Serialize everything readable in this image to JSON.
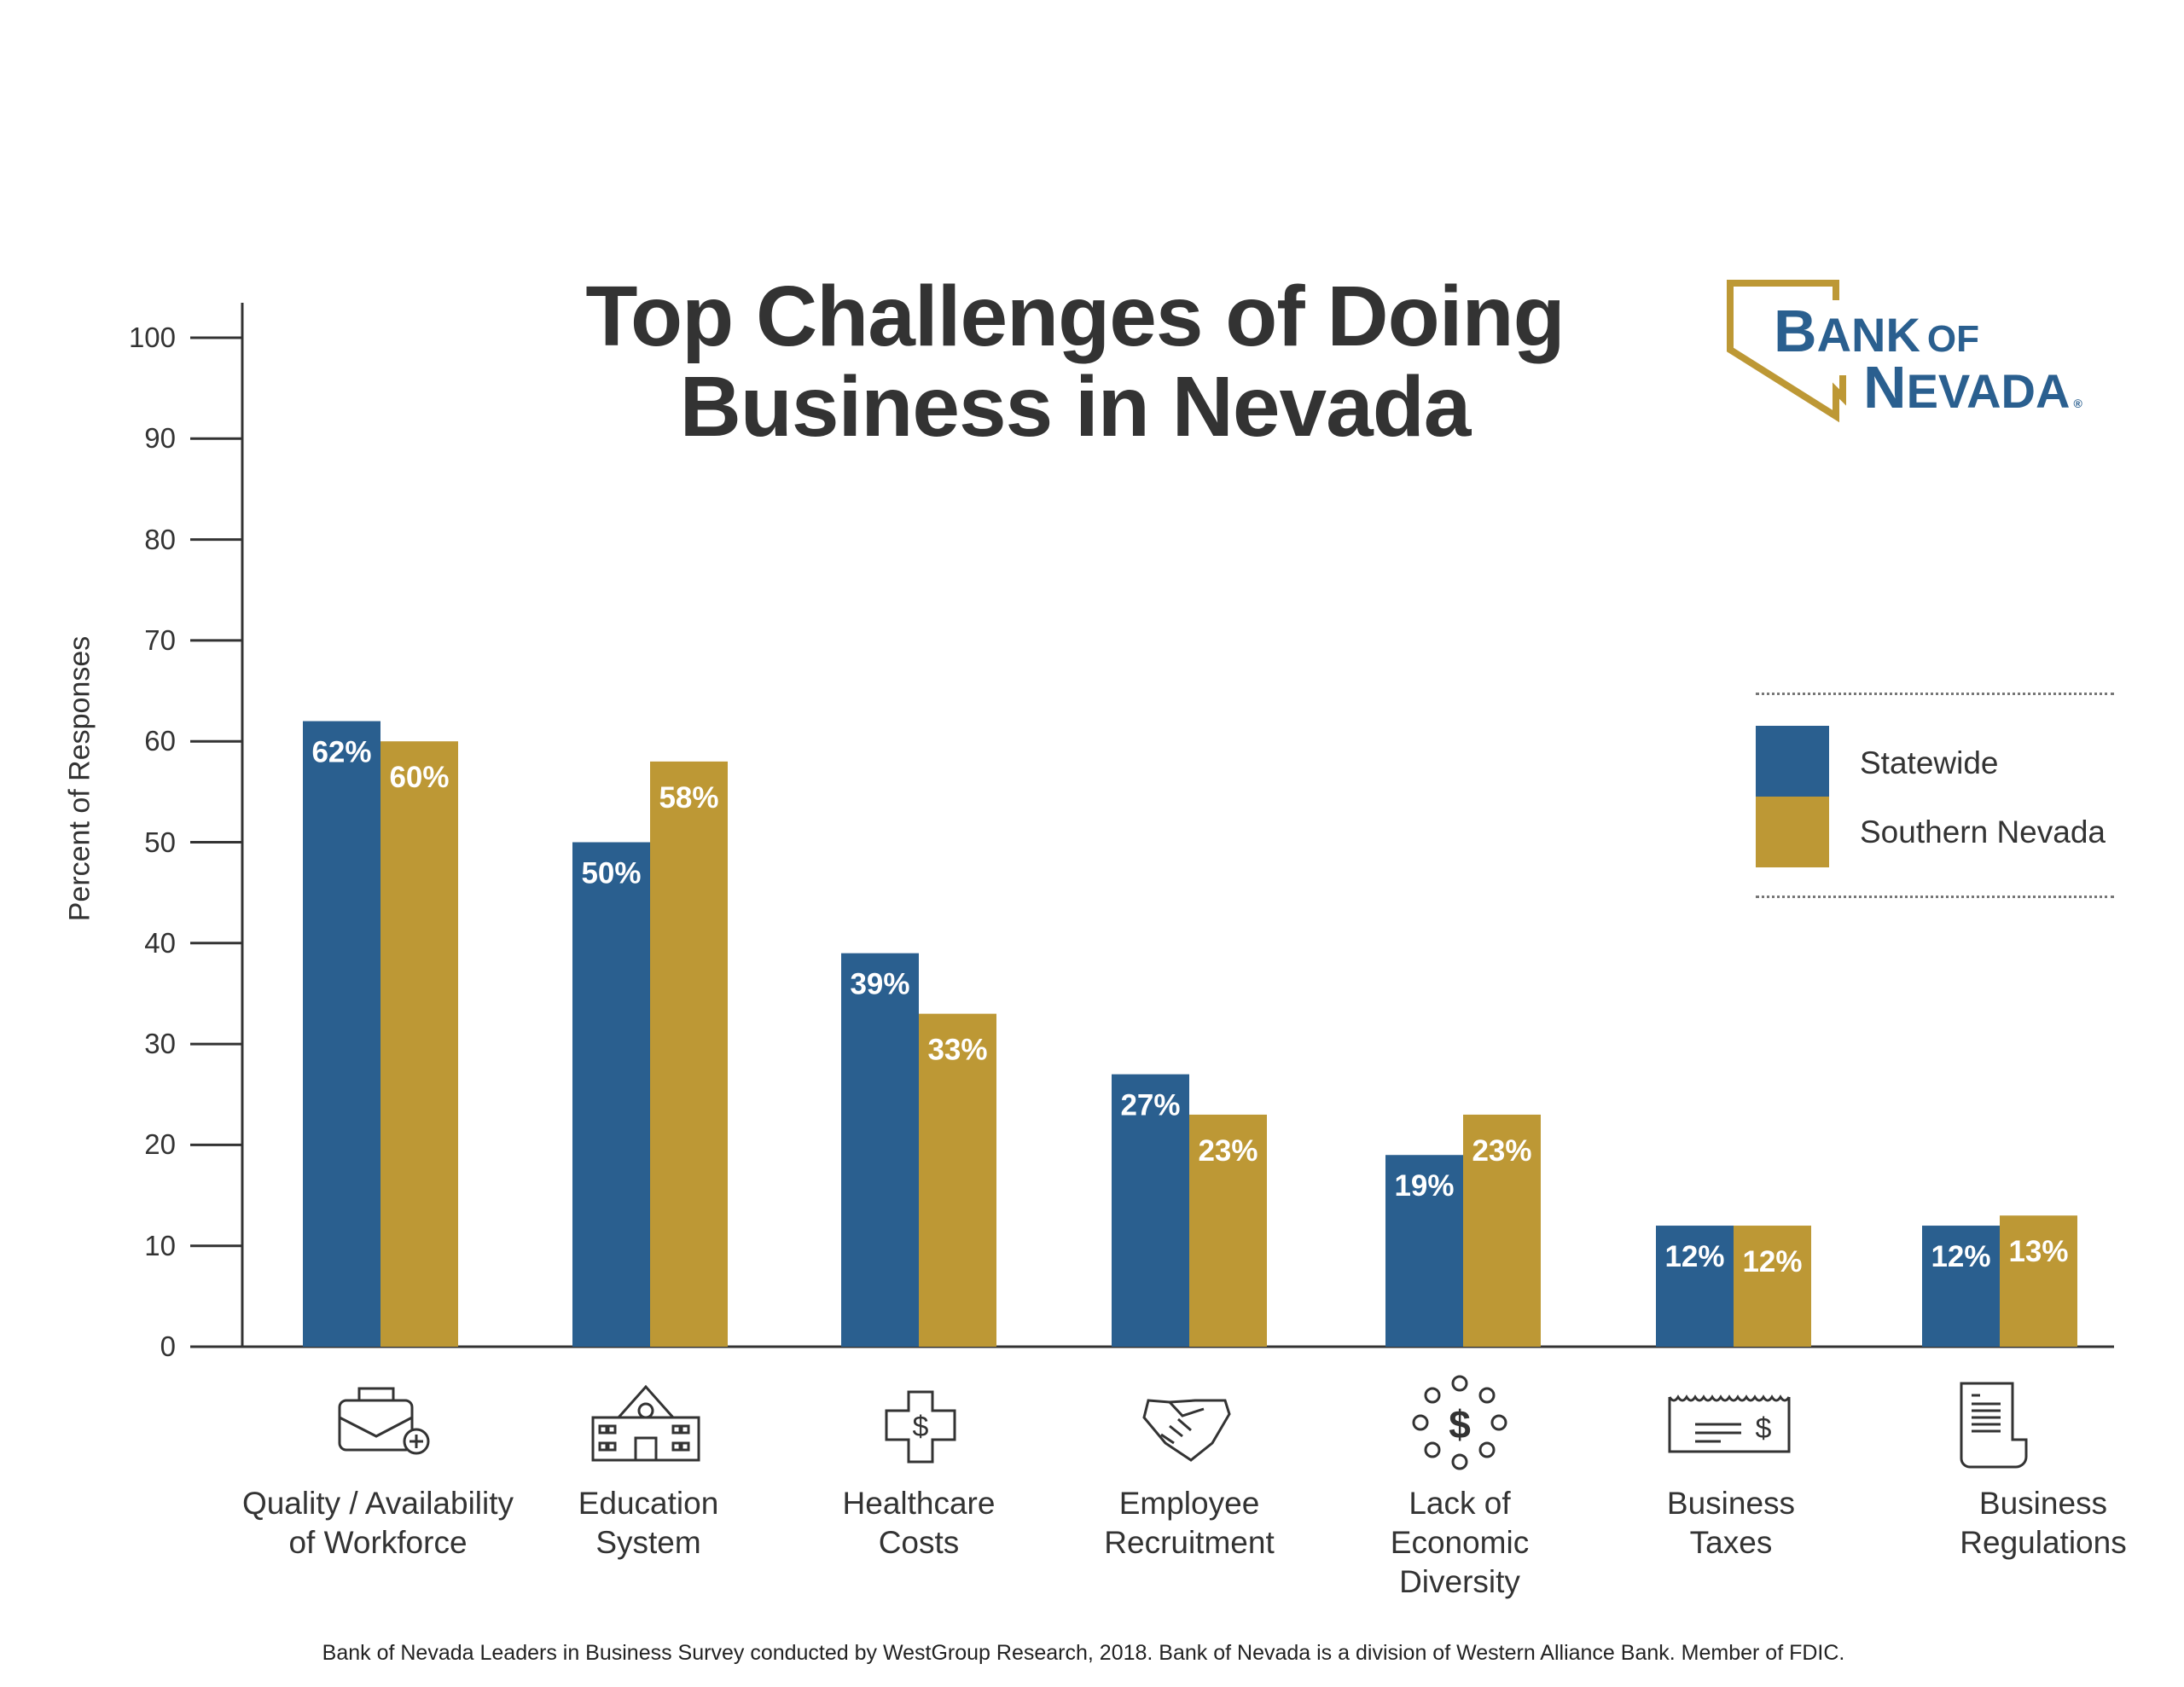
{
  "chart_data": {
    "type": "bar",
    "title": "Top Challenges of Doing Business in Nevada",
    "ylabel": "Percent of Responses",
    "xlabel": "",
    "ylim": [
      0,
      100
    ],
    "yticks": [
      "0",
      "10",
      "20",
      "30",
      "40",
      "50",
      "60",
      "70",
      "80",
      "90",
      "100"
    ],
    "categories": [
      [
        "Quality / Availability",
        "of Workforce"
      ],
      [
        "Education",
        "System"
      ],
      [
        "Healthcare",
        "Costs"
      ],
      [
        "Employee",
        "Recruitment"
      ],
      [
        "Lack of",
        "Economic",
        "Diversity"
      ],
      [
        "Business",
        "Taxes"
      ],
      [
        "Business",
        "Regulations"
      ]
    ],
    "category_icons": [
      "briefcase-plus-icon",
      "school-building-icon",
      "medical-cross-dollar-icon",
      "handshake-icon",
      "dollar-circles-icon",
      "tax-receipt-icon",
      "document-scroll-icon"
    ],
    "series": [
      {
        "name": "Statewide",
        "color": "#2a5f8f",
        "values": [
          62,
          50,
          39,
          27,
          19,
          12,
          12
        ],
        "labels": [
          "62%",
          "50%",
          "39%",
          "27%",
          "19%",
          "12%",
          "12%"
        ]
      },
      {
        "name": "Southern Nevada",
        "color": "#bd9835",
        "values": [
          60,
          58,
          33,
          23,
          23,
          12,
          13
        ],
        "labels": [
          "60%",
          "58%",
          "33%",
          "23%",
          "23%",
          "12%",
          "13%"
        ]
      }
    ],
    "legend_position": "right",
    "grid": false
  },
  "logo": {
    "line1": "Bank of",
    "line2": "Nevada",
    "colors": {
      "text": "#2a5f8f",
      "outline": "#bd9835"
    }
  },
  "footer": "Bank of Nevada Leaders in Business Survey conducted by WestGroup Research, 2018. Bank of Nevada is a division of Western Alliance Bank. Member of FDIC."
}
